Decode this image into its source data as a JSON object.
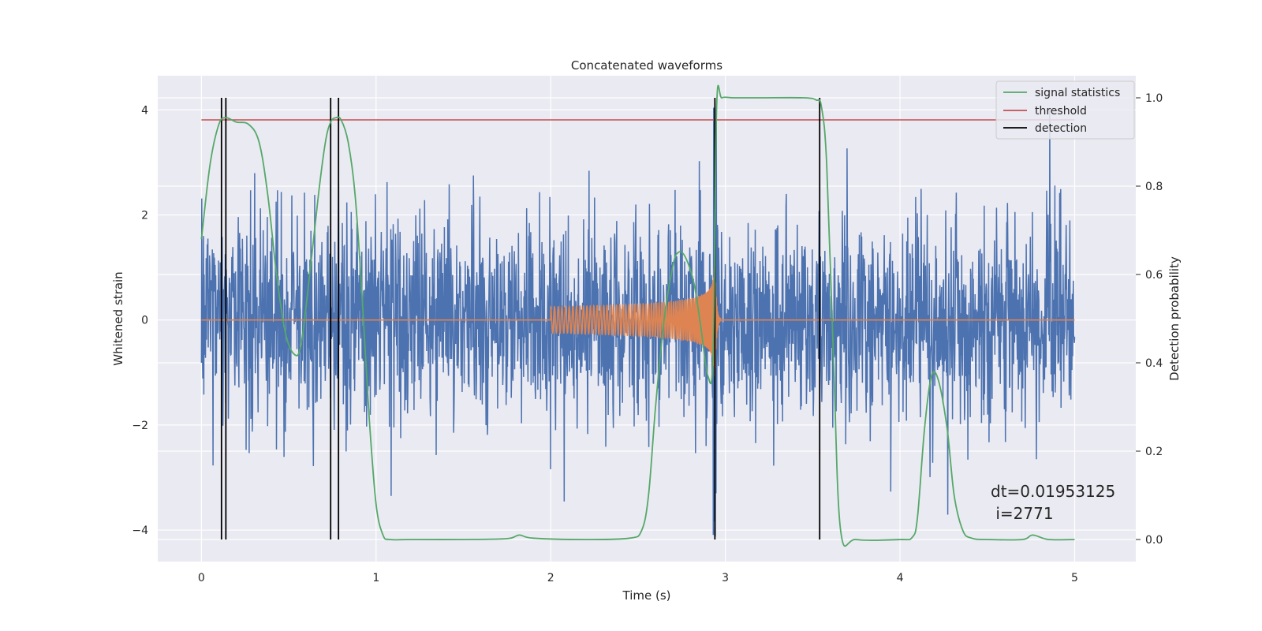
{
  "chart_data": {
    "type": "line",
    "title": "Concatenated waveforms",
    "xlabel": "Time (s)",
    "ylabel_left": "Whitened strain",
    "ylabel_right": "Detection probability",
    "xlim": [
      -0.25,
      5.35
    ],
    "ylim_left": [
      -4.6,
      4.65
    ],
    "ylim_right": [
      -0.05,
      1.05
    ],
    "x_ticks": [
      0,
      1,
      2,
      3,
      4,
      5
    ],
    "x_tick_labels": [
      "0",
      "1",
      "2",
      "3",
      "4",
      "5"
    ],
    "y_left_ticks": [
      -4,
      -2,
      0,
      2,
      4
    ],
    "y_left_tick_labels": [
      "−4",
      "−2",
      "0",
      "2",
      "4"
    ],
    "y_right_ticks": [
      0.0,
      0.2,
      0.4,
      0.6,
      0.8,
      1.0
    ],
    "y_right_tick_labels": [
      "0.0",
      "0.2",
      "0.4",
      "0.6",
      "0.8",
      "1.0"
    ],
    "grid": true,
    "legend": {
      "placement": "top-right",
      "entries": [
        {
          "label": "signal statistics",
          "color": "#55a868"
        },
        {
          "label": "threshold",
          "color": "#c44e52"
        },
        {
          "label": "detection",
          "color": "#000000"
        }
      ]
    },
    "series": [
      {
        "name": "whitened strain",
        "axis": "left",
        "color": "#4c72b0",
        "kind": "noise",
        "x_range": [
          0,
          5
        ],
        "amplitude_typical": 1.6,
        "amplitude_peak": 4.0
      },
      {
        "name": "waveform",
        "axis": "left",
        "color": "#dd8452",
        "kind": "chirp",
        "x_range": [
          2.0,
          3.0
        ],
        "merger_time": 2.94
      },
      {
        "name": "signal statistics",
        "axis": "right",
        "color": "#55a868",
        "x": [
          0.0,
          0.05,
          0.1,
          0.14,
          0.2,
          0.27,
          0.33,
          0.38,
          0.43,
          0.48,
          0.53,
          0.57,
          0.62,
          0.67,
          0.71,
          0.74,
          0.77,
          0.8,
          0.84,
          0.88,
          0.92,
          0.96,
          1.0,
          1.04,
          1.08,
          1.2,
          1.5,
          1.75,
          1.82,
          1.9,
          2.2,
          2.45,
          2.52,
          2.56,
          2.6,
          2.65,
          2.7,
          2.73,
          2.77,
          2.82,
          2.86,
          2.9,
          2.93,
          2.95,
          2.98,
          3.05,
          3.2,
          3.45,
          3.52,
          3.55,
          3.58,
          3.62,
          3.66,
          3.75,
          4.0,
          4.07,
          4.1,
          4.14,
          4.18,
          4.22,
          4.27,
          4.31,
          4.36,
          4.41,
          4.5,
          4.7,
          4.76,
          4.85,
          5.0
        ],
        "y": [
          0.68,
          0.85,
          0.94,
          0.955,
          0.945,
          0.94,
          0.9,
          0.78,
          0.6,
          0.47,
          0.42,
          0.44,
          0.6,
          0.78,
          0.9,
          0.945,
          0.955,
          0.95,
          0.9,
          0.78,
          0.55,
          0.28,
          0.08,
          0.01,
          0.0,
          0.0,
          0.0,
          0.002,
          0.01,
          0.003,
          0.0,
          0.003,
          0.02,
          0.1,
          0.3,
          0.5,
          0.62,
          0.65,
          0.64,
          0.58,
          0.48,
          0.37,
          0.42,
          0.98,
          1.0,
          1.0,
          1.0,
          1.0,
          0.995,
          0.98,
          0.85,
          0.4,
          0.02,
          0.0,
          0.0,
          0.005,
          0.05,
          0.25,
          0.37,
          0.36,
          0.25,
          0.1,
          0.02,
          0.003,
          0.0,
          0.0,
          0.01,
          0.0,
          0.0
        ]
      },
      {
        "name": "threshold",
        "axis": "right",
        "color": "#c44e52",
        "x": [
          0.0,
          5.0
        ],
        "y": [
          0.95,
          0.95
        ]
      }
    ],
    "detections": [
      0.115,
      0.14,
      0.74,
      0.785,
      2.94,
      3.54
    ],
    "annotation": {
      "text_line1": "dt=0.01953125",
      "text_line2": " i=2771"
    }
  }
}
